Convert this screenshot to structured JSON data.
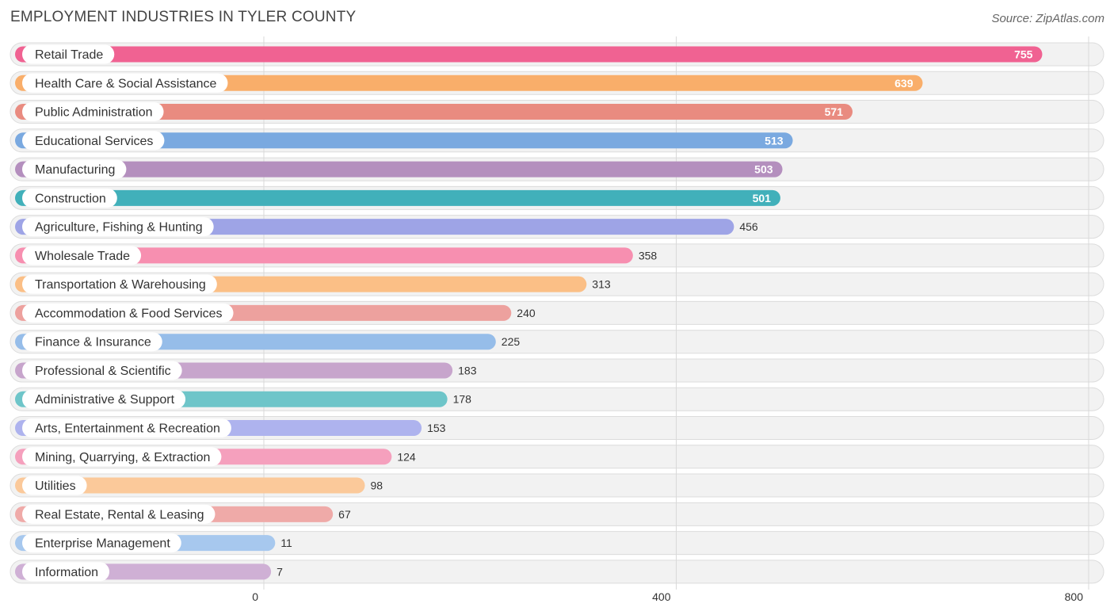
{
  "header": {
    "title": "EMPLOYMENT INDUSTRIES IN TYLER COUNTY",
    "source": "Source: ZipAtlas.com"
  },
  "chart_data": {
    "type": "bar",
    "orientation": "horizontal",
    "title": "EMPLOYMENT INDUSTRIES IN TYLER COUNTY",
    "xlabel": "",
    "ylabel": "",
    "xlim": [
      0,
      800
    ],
    "xticks": [
      0,
      400,
      800
    ],
    "grid": true,
    "categories": [
      "Retail Trade",
      "Health Care & Social Assistance",
      "Public Administration",
      "Educational Services",
      "Manufacturing",
      "Construction",
      "Agriculture, Fishing & Hunting",
      "Wholesale Trade",
      "Transportation & Warehousing",
      "Accommodation & Food Services",
      "Finance & Insurance",
      "Professional & Scientific",
      "Administrative & Support",
      "Arts, Entertainment & Recreation",
      "Mining, Quarrying, & Extraction",
      "Utilities",
      "Real Estate, Rental & Leasing",
      "Enterprise Management",
      "Information"
    ],
    "values": [
      755,
      639,
      571,
      513,
      503,
      501,
      456,
      358,
      313,
      240,
      225,
      183,
      178,
      153,
      124,
      98,
      67,
      11,
      7
    ],
    "colors": [
      "#f06292",
      "#f9ae6a",
      "#e98b80",
      "#7aa9e0",
      "#b48fbe",
      "#41b0ba",
      "#9ea4e6",
      "#f78fb0",
      "#fbbf86",
      "#eda19e",
      "#96bde9",
      "#c7a5cc",
      "#6ec5c9",
      "#aeb3ee",
      "#f5a0bd",
      "#fbc99a",
      "#efaaa8",
      "#a7c8ee",
      "#cfb0d5"
    ]
  }
}
